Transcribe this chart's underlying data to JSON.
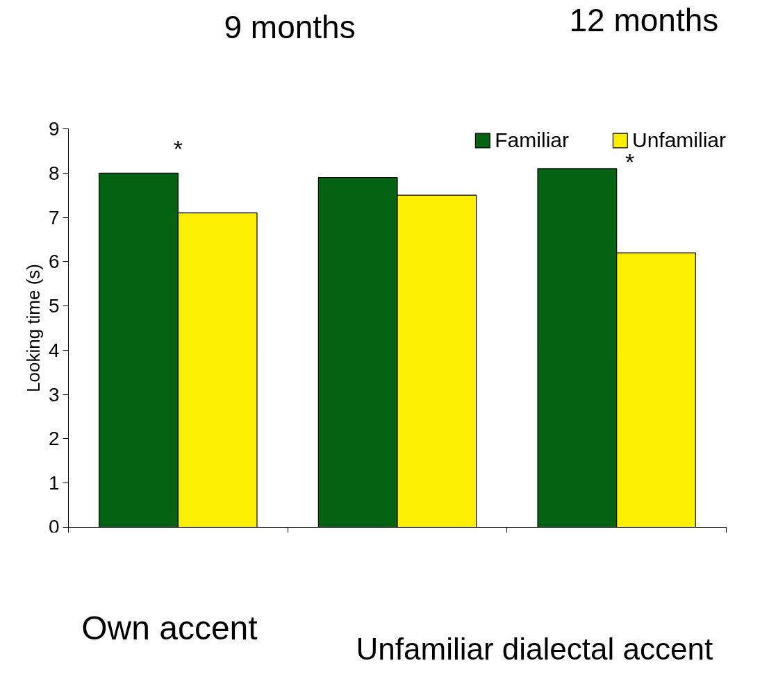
{
  "chart_data": {
    "type": "bar",
    "ylabel": "Looking time (s)",
    "categories": [
      null,
      null,
      null
    ],
    "series": [
      {
        "name": "Familiar",
        "color": "#036312",
        "values": [
          8.0,
          7.9,
          8.1
        ]
      },
      {
        "name": "Unfamiliar",
        "color": "#fcf000",
        "values": [
          7.1,
          7.5,
          6.2
        ]
      }
    ],
    "ylim": [
      0,
      9
    ],
    "yticks": [
      0,
      1,
      2,
      3,
      4,
      5,
      6,
      7,
      8,
      9
    ],
    "grid": false,
    "legend": "top right",
    "annotations": [
      "9 months",
      "12 months",
      "*",
      "*",
      "Own accent",
      "Unfamiliar dialectal accent"
    ]
  }
}
